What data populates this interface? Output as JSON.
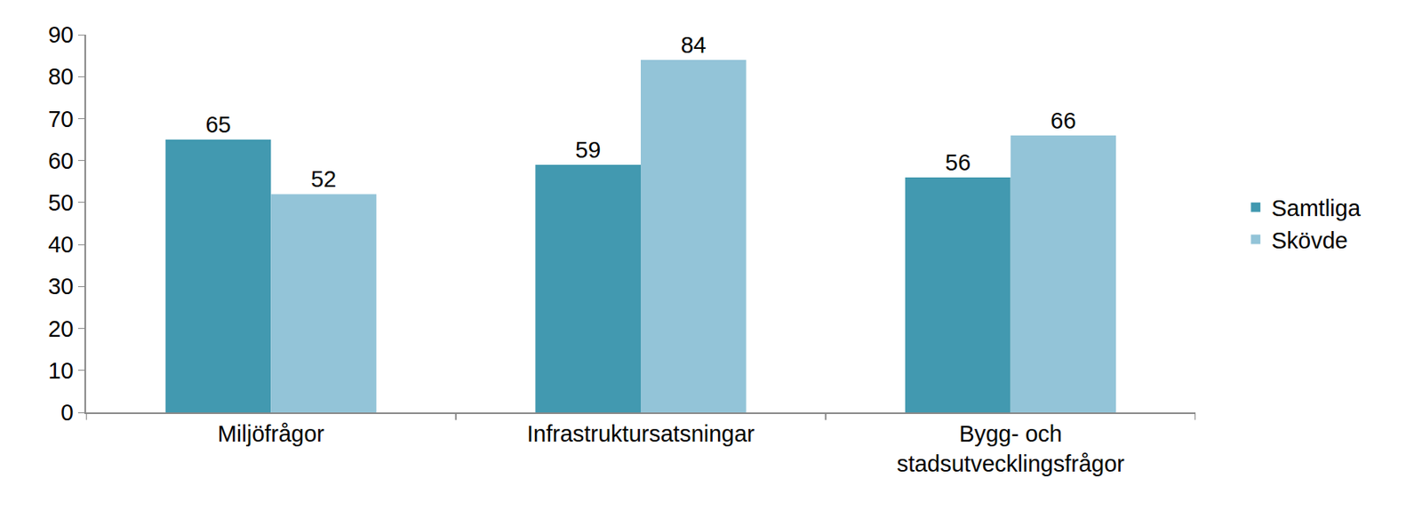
{
  "chart_data": {
    "type": "bar",
    "categories": [
      "Miljöfrågor",
      "Infrastruktursatsningar",
      "Bygg- och\nstadsutvecklingsfrågor"
    ],
    "series": [
      {
        "name": "Samtliga",
        "color": "#4299b0",
        "values": [
          65,
          59,
          56
        ]
      },
      {
        "name": "Skövde",
        "color": "#93c4d8",
        "values": [
          52,
          84,
          66
        ]
      }
    ],
    "ylim": [
      0,
      90
    ],
    "yticks": [
      0,
      10,
      20,
      30,
      40,
      50,
      60,
      70,
      80,
      90
    ],
    "grid": false,
    "data_labels": true,
    "legend": "right"
  }
}
